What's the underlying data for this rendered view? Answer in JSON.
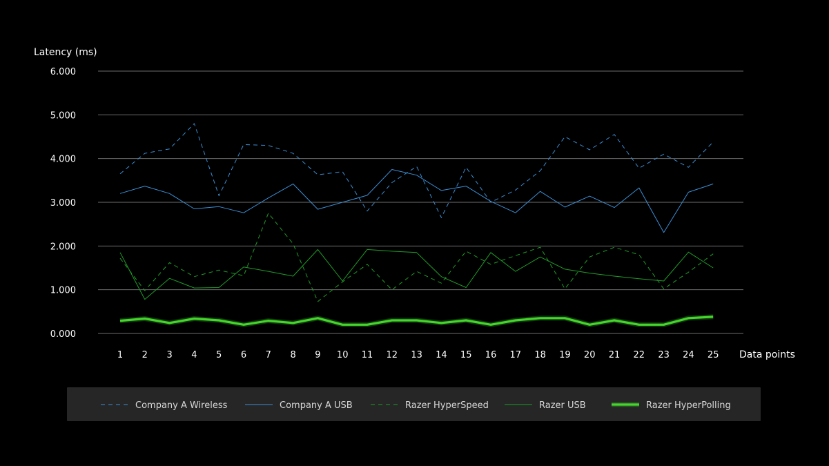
{
  "chart_data": {
    "type": "line",
    "title": "",
    "ylabel": "Latency (ms)",
    "xlabel": "Data points",
    "ylim": [
      0,
      6
    ],
    "yticks": [
      "0.000",
      "1.000",
      "2.000",
      "3.000",
      "4.000",
      "5.000",
      "6.000"
    ],
    "grid": true,
    "legend_position": "bottom",
    "x": [
      "1",
      "2",
      "3",
      "4",
      "5",
      "6",
      "7",
      "8",
      "9",
      "10",
      "11",
      "12",
      "13",
      "14",
      "15",
      "16",
      "17",
      "18",
      "19",
      "20",
      "21",
      "22",
      "23",
      "24",
      "25"
    ],
    "series": [
      {
        "name": "Company A Wireless",
        "color": "#3a8fd6",
        "dash": "dashed",
        "values": [
          3.65,
          4.12,
          4.22,
          4.8,
          3.15,
          4.32,
          4.3,
          4.12,
          3.63,
          3.7,
          2.8,
          3.45,
          3.82,
          2.65,
          3.8,
          3.0,
          3.28,
          3.72,
          4.5,
          4.2,
          4.55,
          3.78,
          4.1,
          3.8,
          4.38
        ]
      },
      {
        "name": "Company A USB",
        "color": "#3a8fd6",
        "dash": "solid",
        "values": [
          3.2,
          3.37,
          3.2,
          2.85,
          2.9,
          2.76,
          3.1,
          3.42,
          2.84,
          3.0,
          3.16,
          3.75,
          3.62,
          3.27,
          3.37,
          3.02,
          2.76,
          3.25,
          2.89,
          3.14,
          2.88,
          3.33,
          2.31,
          3.23,
          3.42
        ]
      },
      {
        "name": "Razer HyperSpeed",
        "color": "#1f9e27",
        "dash": "dashed",
        "values": [
          1.72,
          0.98,
          1.62,
          1.3,
          1.45,
          1.32,
          2.75,
          2.05,
          0.73,
          1.18,
          1.58,
          1.0,
          1.42,
          1.15,
          1.88,
          1.58,
          1.78,
          1.97,
          1.02,
          1.75,
          1.97,
          1.8,
          1.02,
          1.4,
          1.82
        ]
      },
      {
        "name": "Razer USB",
        "color": "#1f9e27",
        "dash": "solid",
        "values": [
          1.85,
          0.78,
          1.26,
          1.04,
          1.05,
          1.52,
          1.42,
          1.31,
          1.92,
          1.2,
          1.92,
          1.88,
          1.85,
          1.3,
          1.05,
          1.85,
          1.42,
          1.75,
          1.47,
          1.38,
          1.31,
          1.25,
          1.2,
          1.86,
          1.5
        ]
      },
      {
        "name": "Razer HyperPolling",
        "color": "#44d62c",
        "dash": "bold",
        "values": [
          0.29,
          0.34,
          0.24,
          0.34,
          0.3,
          0.2,
          0.29,
          0.24,
          0.35,
          0.2,
          0.2,
          0.3,
          0.3,
          0.24,
          0.3,
          0.2,
          0.3,
          0.35,
          0.35,
          0.2,
          0.3,
          0.2,
          0.2,
          0.35,
          0.38
        ]
      }
    ]
  },
  "colors": {
    "background": "#000000",
    "gridline": "#6e6e6e",
    "legend_background": "#262626"
  }
}
